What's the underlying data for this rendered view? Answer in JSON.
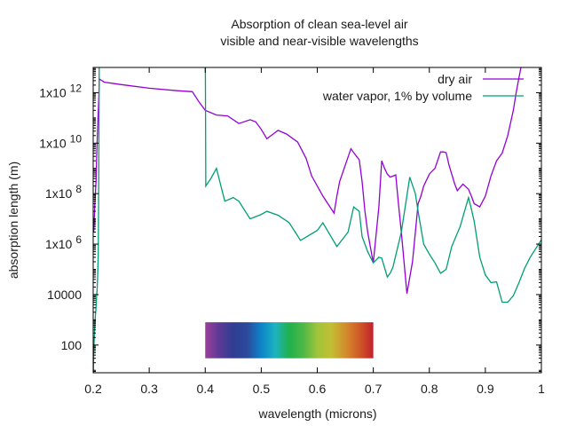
{
  "chart_data": {
    "type": "line",
    "title": "Absorption of clean sea-level air",
    "subtitle": "visible and near-visible wavelengths",
    "xlabel": "wavelength (microns)",
    "ylabel": "absorption length (m)",
    "xlim": [
      0.2,
      1.0
    ],
    "ylim": [
      8,
      10000000000000.0
    ],
    "yscale": "log",
    "grid": false,
    "legend_position": "top-right",
    "x_ticks": [
      {
        "value": 0.2,
        "label": "0.2"
      },
      {
        "value": 0.3,
        "label": "0.3"
      },
      {
        "value": 0.4,
        "label": "0.4"
      },
      {
        "value": 0.5,
        "label": "0.5"
      },
      {
        "value": 0.6,
        "label": "0.6"
      },
      {
        "value": 0.7,
        "label": "0.7"
      },
      {
        "value": 0.8,
        "label": "0.8"
      },
      {
        "value": 0.9,
        "label": "0.9"
      },
      {
        "value": 1.0,
        "label": "1"
      }
    ],
    "y_ticks": [
      {
        "value": 100,
        "base": "100",
        "exp": ""
      },
      {
        "value": 10000,
        "base": "10000",
        "exp": ""
      },
      {
        "value": 1000000.0,
        "base": "1x10",
        "exp": "6"
      },
      {
        "value": 100000000.0,
        "base": "1x10",
        "exp": "8"
      },
      {
        "value": 10000000000.0,
        "base": "1x10",
        "exp": "10"
      },
      {
        "value": 1000000000000.0,
        "base": "1x10",
        "exp": "12"
      }
    ],
    "spectrum_band": {
      "x_range": [
        0.4,
        0.7
      ],
      "y_range": [
        30,
        800
      ],
      "colors": [
        "#9b3f98",
        "#5c3a96",
        "#2e3e92",
        "#2c4a9c",
        "#0d84c8",
        "#1cb3c0",
        "#21b14b",
        "#4db848",
        "#9fc43a",
        "#c3be34",
        "#d38e2c",
        "#cf5a28",
        "#c2202a"
      ]
    },
    "series": [
      {
        "name": "dry air",
        "color": "#9400d3",
        "x": [
          0.201,
          0.202,
          0.203,
          0.205,
          0.206,
          0.207,
          0.208,
          0.21,
          0.211,
          0.22,
          0.25,
          0.3,
          0.35,
          0.377,
          0.39,
          0.4,
          0.42,
          0.44,
          0.46,
          0.48,
          0.49,
          0.5,
          0.51,
          0.52,
          0.53,
          0.545,
          0.565,
          0.58,
          0.59,
          0.61,
          0.63,
          0.635,
          0.64,
          0.66,
          0.67,
          0.675,
          0.68,
          0.685,
          0.69,
          0.7,
          0.71,
          0.715,
          0.72,
          0.725,
          0.73,
          0.74,
          0.745,
          0.75,
          0.76,
          0.77,
          0.78,
          0.785,
          0.79,
          0.8,
          0.81,
          0.82,
          0.825,
          0.83,
          0.835,
          0.845,
          0.85,
          0.86,
          0.87,
          0.875,
          0.88,
          0.89,
          0.9,
          0.91,
          0.92,
          0.93,
          0.94,
          0.95,
          0.955,
          0.96,
          0.965
        ],
        "y": [
          3000000.0,
          10000000.0,
          40000000.0,
          300000000.0,
          2000000000.0,
          10000000000.0,
          40000000000.0,
          600000000000.0,
          3500000000000.0,
          2600000000000.0,
          2100000000000.0,
          1500000000000.0,
          1200000000000.0,
          1100000000000.0,
          400000000000.0,
          200000000000.0,
          130000000000.0,
          120000000000.0,
          60000000000.0,
          85000000000.0,
          70000000000.0,
          35000000000.0,
          15000000000.0,
          22000000000.0,
          32000000000.0,
          23000000000.0,
          11000000000.0,
          2500000000.0,
          500000000.0,
          80000000.0,
          17000000.0,
          80000000.0,
          300000000.0,
          6000000000.0,
          3000000000.0,
          2200000000.0,
          300000000.0,
          20000000.0,
          3000000.0,
          180000.0,
          30000000.0,
          2000000000.0,
          1000000000.0,
          600000000.0,
          450000000.0,
          550000000.0,
          38000000.0,
          3000000.0,
          11000.0,
          200000.0,
          40000000.0,
          80000000.0,
          200000000.0,
          600000000.0,
          1000000000.0,
          4500000000.0,
          4500000000.0,
          4200000000.0,
          1400000000.0,
          250000000.0,
          130000000.0,
          240000000.0,
          150000000.0,
          80000000.0,
          40000000.0,
          30000000.0,
          80000000.0,
          500000000.0,
          2000000000.0,
          4000000000.0,
          20000000000.0,
          200000000000.0,
          1000000000000.0,
          4000000000000.0,
          15000000000000.0
        ]
      },
      {
        "name": "water vapor, 1% by volume",
        "color": "#009e73",
        "x": [
          0.2,
          0.201,
          0.202,
          0.203,
          0.204,
          0.205,
          0.206,
          0.207,
          0.208,
          0.209,
          0.21,
          0.211,
          0.4,
          0.401,
          0.41,
          0.42,
          0.435,
          0.45,
          0.46,
          0.48,
          0.5,
          0.51,
          0.53,
          0.55,
          0.57,
          0.6,
          0.61,
          0.635,
          0.655,
          0.665,
          0.675,
          0.68,
          0.69,
          0.7,
          0.71,
          0.715,
          0.725,
          0.73,
          0.735,
          0.75,
          0.765,
          0.775,
          0.78,
          0.79,
          0.8,
          0.81,
          0.82,
          0.83,
          0.84,
          0.855,
          0.87,
          0.875,
          0.88,
          0.89,
          0.9,
          0.91,
          0.92,
          0.93,
          0.94,
          0.95,
          0.96,
          0.97,
          0.98,
          1.0
        ],
        "y": [
          3,
          60,
          200,
          700,
          1500,
          3000,
          8000,
          15000,
          50000,
          400000.0,
          500000000.0,
          100000000000000.0,
          100000000000000.0,
          200000000.0,
          400000000.0,
          1000000000.0,
          50000000.0,
          70000000.0,
          50000000.0,
          10000000.0,
          15000000.0,
          20000000.0,
          14000000.0,
          7000000.0,
          1400000.0,
          3500000.0,
          7000000.0,
          800000.0,
          3000000.0,
          30000000.0,
          20000000.0,
          2000000.0,
          500000.0,
          180000.0,
          300000.0,
          280000.0,
          50000.0,
          70000.0,
          120000.0,
          3000000.0,
          450000000.0,
          100000000.0,
          20000000.0,
          1000000.0,
          400000.0,
          180000.0,
          70000.0,
          100000.0,
          800000.0,
          5000000.0,
          70000000.0,
          25000000.0,
          8000000.0,
          300000.0,
          60000.0,
          30000.0,
          32000.0,
          5000.0,
          5000.0,
          9000.0,
          30000.0,
          110000.0,
          300000.0,
          1500000.0
        ]
      }
    ]
  }
}
